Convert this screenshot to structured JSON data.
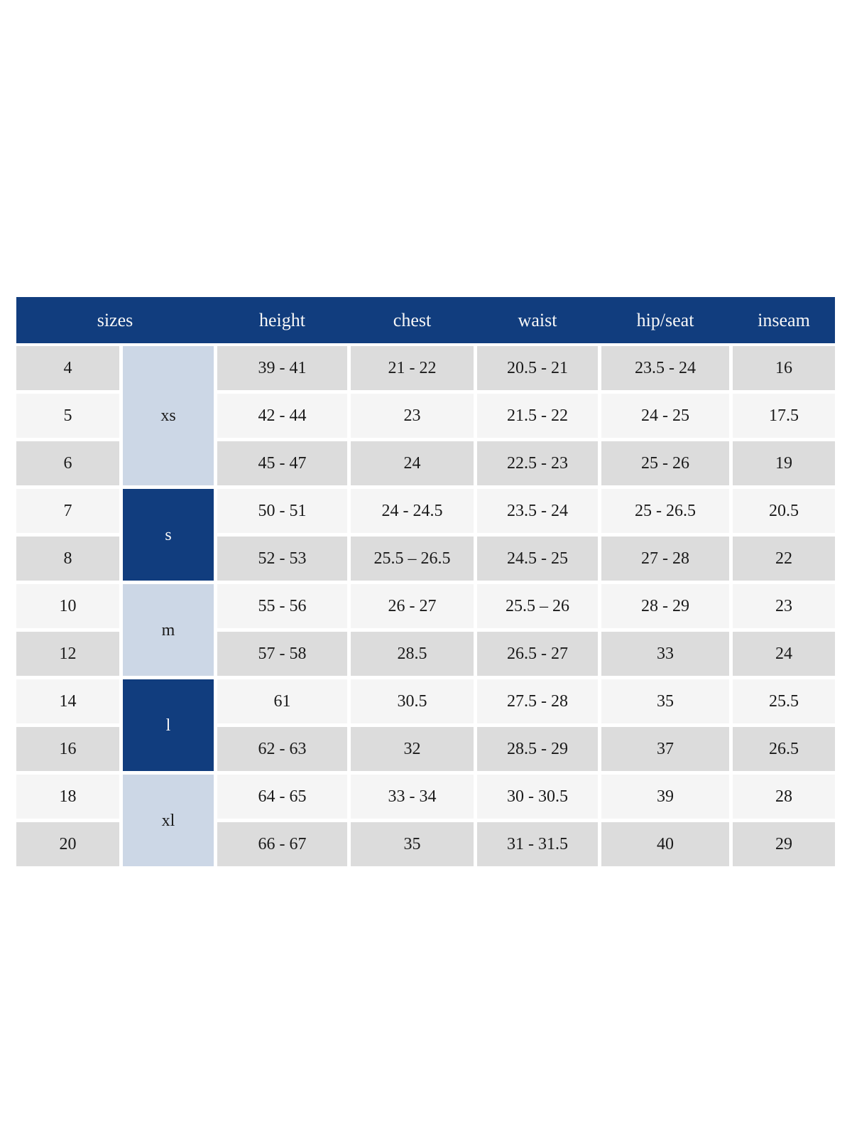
{
  "page": {
    "background_color": "#ffffff"
  },
  "chart_data": {
    "type": "table",
    "title": "",
    "legend_position": "none",
    "columns": [
      "sizes",
      "height",
      "chest",
      "waist",
      "hip/seat",
      "inseam"
    ],
    "headers": {
      "sizes": "sizes",
      "height": "height",
      "chest": "chest",
      "waist": "waist",
      "hip_seat": "hip/seat",
      "inseam": "inseam"
    },
    "groups": [
      {
        "label": "xs",
        "span": 3,
        "style": "light",
        "sizes": [
          "4",
          "5",
          "6"
        ]
      },
      {
        "label": "s",
        "span": 2,
        "style": "dark",
        "sizes": [
          "7",
          "8"
        ]
      },
      {
        "label": "m",
        "span": 2,
        "style": "light",
        "sizes": [
          "10",
          "12"
        ]
      },
      {
        "label": "l",
        "span": 2,
        "style": "dark",
        "sizes": [
          "14",
          "16"
        ]
      },
      {
        "label": "xl",
        "span": 2,
        "style": "light",
        "sizes": [
          "18",
          "20"
        ]
      }
    ],
    "rows": [
      {
        "size": "4",
        "height": "39 - 41",
        "chest": "21 - 22",
        "waist": "20.5 - 21",
        "hip_seat": "23.5 - 24",
        "inseam": "16"
      },
      {
        "size": "5",
        "height": "42 - 44",
        "chest": "23",
        "waist": "21.5 - 22",
        "hip_seat": "24 - 25",
        "inseam": "17.5"
      },
      {
        "size": "6",
        "height": "45 - 47",
        "chest": "24",
        "waist": "22.5 - 23",
        "hip_seat": "25 - 26",
        "inseam": "19"
      },
      {
        "size": "7",
        "height": "50 - 51",
        "chest": "24 - 24.5",
        "waist": "23.5 - 24",
        "hip_seat": "25 - 26.5",
        "inseam": "20.5"
      },
      {
        "size": "8",
        "height": "52 - 53",
        "chest": "25.5 – 26.5",
        "waist": "24.5 - 25",
        "hip_seat": "27 - 28",
        "inseam": "22"
      },
      {
        "size": "10",
        "height": "55 - 56",
        "chest": "26 - 27",
        "waist": "25.5 – 26",
        "hip_seat": "28 - 29",
        "inseam": "23"
      },
      {
        "size": "12",
        "height": "57 - 58",
        "chest": "28.5",
        "waist": "26.5 - 27",
        "hip_seat": "33",
        "inseam": "24"
      },
      {
        "size": "14",
        "height": "61",
        "chest": "30.5",
        "waist": "27.5 - 28",
        "hip_seat": "35",
        "inseam": "25.5"
      },
      {
        "size": "16",
        "height": "62 - 63",
        "chest": "32",
        "waist": "28.5 - 29",
        "hip_seat": "37",
        "inseam": "26.5"
      },
      {
        "size": "18",
        "height": "64 - 65",
        "chest": "33 - 34",
        "waist": "30 - 30.5",
        "hip_seat": "39",
        "inseam": "28"
      },
      {
        "size": "20",
        "height": "66 - 67",
        "chest": "35",
        "waist": "31 - 31.5",
        "hip_seat": "40",
        "inseam": "29"
      }
    ],
    "colors": {
      "header_bg": "#113d7e",
      "header_text": "#f7f7f7",
      "group_dark_bg": "#113d7e",
      "group_dark_text": "#f7f7f7",
      "group_light_bg": "#ccd7e6",
      "row_gray_bg": "#dcdcdc",
      "row_light_bg": "#f5f5f5",
      "cell_text": "#1a1a1a"
    }
  }
}
